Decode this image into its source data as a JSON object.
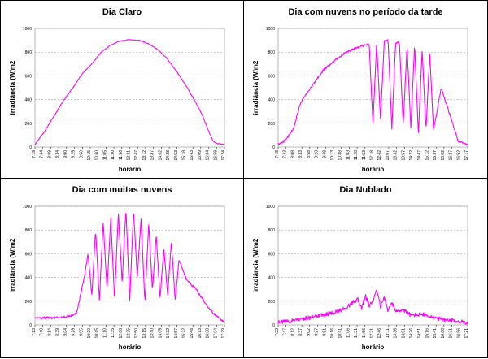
{
  "chart_data": [
    {
      "type": "line",
      "title": "Dia Claro",
      "xlabel": "horário",
      "ylabel": "irradiância (W/m2",
      "ylim": [
        0,
        1000
      ],
      "yticks": [
        "0",
        "200",
        "400",
        "600",
        "800",
        "1000"
      ],
      "xticks": [
        "7:19",
        "7:44",
        "8:09",
        "8:34",
        "9:00",
        "9:25",
        "9:50",
        "10:15",
        "10:40",
        "11:05",
        "11:30",
        "11:56",
        "12:21",
        "12:47",
        "13:12",
        "13:37",
        "14:02",
        "14:28",
        "14:53",
        "15:18",
        "15:43",
        "16:09",
        "16:34",
        "16:59",
        "17:24"
      ],
      "color": "#ff00ff",
      "grid": true,
      "pattern": "clear",
      "x": [
        0,
        0.05,
        0.1,
        0.15,
        0.2,
        0.25,
        0.3,
        0.35,
        0.4,
        0.45,
        0.5,
        0.55,
        0.6,
        0.65,
        0.7,
        0.75,
        0.8,
        0.85,
        0.88,
        0.9,
        0.92,
        0.94,
        0.96,
        1.0
      ],
      "y": [
        20,
        130,
        260,
        390,
        500,
        620,
        700,
        800,
        860,
        895,
        905,
        900,
        870,
        820,
        740,
        630,
        510,
        370,
        280,
        200,
        120,
        50,
        30,
        20
      ]
    },
    {
      "type": "line",
      "title": "Dia com nuvens no período da tarde",
      "xlabel": "horário",
      "ylabel": "irradiância (W/m2",
      "ylim": [
        0,
        1000
      ],
      "yticks": [
        "0",
        "200",
        "400",
        "600",
        "800",
        "1000"
      ],
      "xticks": [
        "7:18",
        "7:43",
        "8:08",
        "8:33",
        "8:58",
        "9:23",
        "9:48",
        "10:13",
        "10:38",
        "11:03",
        "11:28",
        "11:53",
        "12:18",
        "12:42",
        "13:07",
        "13:32",
        "13:57",
        "14:22",
        "14:47",
        "15:12",
        "15:37",
        "16:02",
        "16:27",
        "16:52",
        "17:17"
      ],
      "color": "#ff00ff",
      "grid": true,
      "pattern": "afternoon",
      "x": [
        0,
        0.04,
        0.08,
        0.12,
        0.16,
        0.2,
        0.24,
        0.3,
        0.36,
        0.42,
        0.48,
        0.5,
        0.52,
        0.54,
        0.56,
        0.58,
        0.6,
        0.62,
        0.64,
        0.66,
        0.68,
        0.7,
        0.72,
        0.74,
        0.76,
        0.78,
        0.8,
        0.82,
        0.86,
        0.9,
        0.95,
        1.0
      ],
      "y": [
        20,
        60,
        150,
        380,
        470,
        560,
        650,
        730,
        800,
        840,
        870,
        200,
        880,
        230,
        890,
        900,
        160,
        880,
        880,
        180,
        850,
        170,
        860,
        110,
        820,
        140,
        780,
        140,
        500,
        300,
        50,
        20
      ]
    },
    {
      "type": "line",
      "title": "Dia com muitas nuvens",
      "xlabel": "horário",
      "ylabel": "irradiância (W/m2",
      "ylim": [
        0,
        1000
      ],
      "yticks": [
        "0",
        "200",
        "400",
        "600",
        "800",
        "1000"
      ],
      "xticks": [
        "7:23",
        "7:48",
        "8:14",
        "8:39",
        "9:04",
        "9:29",
        "9:55",
        "10:20",
        "10:45",
        "11:10",
        "11:35",
        "12:00",
        "12:25",
        "12:50",
        "13:15",
        "13:40",
        "14:05",
        "14:32",
        "14:57",
        "15:22",
        "15:48",
        "16:13",
        "16:38",
        "17:04",
        "17:29"
      ],
      "color": "#ff00ff",
      "grid": true,
      "pattern": "cloudy",
      "x": [
        0,
        0.1,
        0.18,
        0.22,
        0.26,
        0.28,
        0.3,
        0.32,
        0.34,
        0.36,
        0.38,
        0.4,
        0.42,
        0.44,
        0.46,
        0.48,
        0.5,
        0.52,
        0.54,
        0.56,
        0.58,
        0.6,
        0.62,
        0.64,
        0.66,
        0.68,
        0.7,
        0.72,
        0.74,
        0.76,
        0.8,
        0.85,
        0.9,
        0.94,
        0.97,
        1.0
      ],
      "y": [
        60,
        60,
        70,
        100,
        400,
        600,
        250,
        800,
        200,
        870,
        300,
        900,
        220,
        950,
        350,
        980,
        200,
        970,
        400,
        900,
        180,
        850,
        300,
        760,
        220,
        650,
        250,
        700,
        200,
        550,
        380,
        300,
        180,
        100,
        60,
        20
      ]
    },
    {
      "type": "line",
      "title": "Dia Nublado",
      "xlabel": "horário",
      "ylabel": "irradiância (W/m2",
      "ylim": [
        0,
        1000
      ],
      "yticks": [
        "0",
        "200",
        "400",
        "600",
        "800",
        "1000"
      ],
      "xticks": [
        "7:22",
        "7:47",
        "8:12",
        "8:37",
        "9:02",
        "9:27",
        "9:51",
        "10:16",
        "10:41",
        "11:06",
        "11:31",
        "11:56",
        "12:21",
        "12:46",
        "13:11",
        "13:36",
        "14:01",
        "14:26",
        "14:51",
        "15:16",
        "15:41",
        "16:06",
        "16:31",
        "16:56",
        "17:21"
      ],
      "color": "#ff00ff",
      "grid": true,
      "pattern": "overcast",
      "x": [
        0,
        0.1,
        0.2,
        0.28,
        0.34,
        0.38,
        0.42,
        0.44,
        0.46,
        0.48,
        0.5,
        0.52,
        0.54,
        0.56,
        0.58,
        0.6,
        0.62,
        0.66,
        0.7,
        0.76,
        0.82,
        0.88,
        0.94,
        1.0
      ],
      "y": [
        20,
        40,
        70,
        100,
        130,
        170,
        220,
        140,
        250,
        160,
        200,
        310,
        150,
        230,
        120,
        190,
        110,
        130,
        80,
        90,
        60,
        40,
        30,
        20
      ]
    }
  ]
}
